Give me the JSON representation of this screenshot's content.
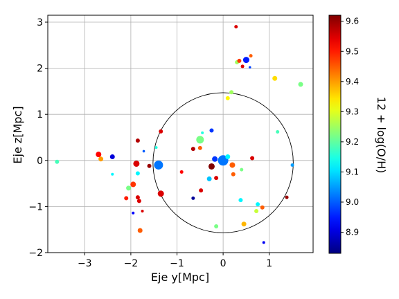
{
  "chart_data": {
    "type": "scatter",
    "xlabel": "Eje y[Mpc]",
    "ylabel": "Eje z[Mpc]",
    "xlim": [
      -3.8,
      1.95
    ],
    "ylim": [
      -2.0,
      3.15
    ],
    "xticks": [
      -3,
      -2,
      -1,
      0,
      1
    ],
    "yticks": [
      -2,
      -1,
      0,
      1,
      2,
      3
    ],
    "grid": true,
    "circle": {
      "center": [
        0.0,
        -0.05
      ],
      "radius": 1.52
    },
    "colorbar": {
      "label": "12 + log(O/H)",
      "range": [
        8.83,
        9.62
      ],
      "ticks": [
        8.9,
        9.0,
        9.1,
        9.2,
        9.3,
        9.4,
        9.5,
        9.6
      ],
      "colormap": "jet"
    },
    "points": [
      {
        "x": -3.6,
        "y": -0.03,
        "c": 9.18,
        "s": 3
      },
      {
        "x": -2.7,
        "y": 0.13,
        "c": 9.52,
        "s": 4
      },
      {
        "x": -2.65,
        "y": 0.03,
        "c": 9.4,
        "s": 3.5
      },
      {
        "x": -2.4,
        "y": 0.08,
        "c": 8.9,
        "s": 3.5
      },
      {
        "x": -2.4,
        "y": -0.3,
        "c": 9.12,
        "s": 2
      },
      {
        "x": -2.1,
        "y": -0.82,
        "c": 9.5,
        "s": 3
      },
      {
        "x": -2.05,
        "y": -0.6,
        "c": 9.22,
        "s": 3.5
      },
      {
        "x": -1.95,
        "y": -0.52,
        "c": 9.48,
        "s": 4
      },
      {
        "x": -1.95,
        "y": -1.14,
        "c": 8.93,
        "s": 2
      },
      {
        "x": -1.88,
        "y": -0.07,
        "c": 9.55,
        "s": 4.5
      },
      {
        "x": -1.85,
        "y": -0.28,
        "c": 9.12,
        "s": 3
      },
      {
        "x": -1.85,
        "y": 0.43,
        "c": 9.58,
        "s": 3
      },
      {
        "x": -1.85,
        "y": -0.8,
        "c": 9.55,
        "s": 3
      },
      {
        "x": -1.82,
        "y": -0.88,
        "c": 9.55,
        "s": 3
      },
      {
        "x": -1.8,
        "y": -1.52,
        "c": 9.45,
        "s": 3.5
      },
      {
        "x": -1.75,
        "y": -1.1,
        "c": 9.55,
        "s": 2
      },
      {
        "x": -1.72,
        "y": 0.2,
        "c": 9.0,
        "s": 1.8
      },
      {
        "x": -1.6,
        "y": -0.12,
        "c": 9.6,
        "s": 3
      },
      {
        "x": -1.45,
        "y": 0.28,
        "c": 9.15,
        "s": 2
      },
      {
        "x": -1.4,
        "y": -0.1,
        "c": 9.02,
        "s": 6.5
      },
      {
        "x": -1.35,
        "y": 0.63,
        "c": 9.55,
        "s": 3
      },
      {
        "x": -1.35,
        "y": -0.72,
        "c": 9.55,
        "s": 4.5
      },
      {
        "x": -0.9,
        "y": -0.25,
        "c": 9.52,
        "s": 2.5
      },
      {
        "x": -0.65,
        "y": -0.82,
        "c": 8.85,
        "s": 2.5
      },
      {
        "x": -0.65,
        "y": 0.25,
        "c": 9.58,
        "s": 3
      },
      {
        "x": -0.5,
        "y": 0.45,
        "c": 9.22,
        "s": 5.5
      },
      {
        "x": -0.5,
        "y": 0.27,
        "c": 9.45,
        "s": 3
      },
      {
        "x": -0.48,
        "y": -0.65,
        "c": 9.55,
        "s": 3
      },
      {
        "x": -0.45,
        "y": 0.6,
        "c": 9.15,
        "s": 2
      },
      {
        "x": -0.3,
        "y": -0.4,
        "c": 9.08,
        "s": 3.5
      },
      {
        "x": -0.25,
        "y": 0.65,
        "c": 8.97,
        "s": 3
      },
      {
        "x": -0.25,
        "y": -0.13,
        "c": 9.62,
        "s": 4.5
      },
      {
        "x": -0.18,
        "y": 0.03,
        "c": 8.97,
        "s": 4
      },
      {
        "x": -0.15,
        "y": -0.38,
        "c": 9.55,
        "s": 3
      },
      {
        "x": -0.15,
        "y": -1.43,
        "c": 9.22,
        "s": 3
      },
      {
        "x": 0.0,
        "y": 0.0,
        "c": 9.02,
        "s": 7.5
      },
      {
        "x": 0.1,
        "y": 0.08,
        "c": 9.12,
        "s": 3.5
      },
      {
        "x": 0.1,
        "y": 1.35,
        "c": 9.33,
        "s": 3
      },
      {
        "x": 0.18,
        "y": 1.48,
        "c": 9.25,
        "s": 3
      },
      {
        "x": 0.2,
        "y": -0.1,
        "c": 9.45,
        "s": 4
      },
      {
        "x": 0.22,
        "y": -0.3,
        "c": 9.45,
        "s": 3
      },
      {
        "x": 0.28,
        "y": 2.9,
        "c": 9.55,
        "s": 2.5
      },
      {
        "x": 0.3,
        "y": 2.13,
        "c": 9.25,
        "s": 3
      },
      {
        "x": 0.35,
        "y": 2.16,
        "c": 9.48,
        "s": 3
      },
      {
        "x": 0.38,
        "y": -0.86,
        "c": 9.12,
        "s": 3
      },
      {
        "x": 0.4,
        "y": -0.2,
        "c": 9.22,
        "s": 2.5
      },
      {
        "x": 0.42,
        "y": 2.04,
        "c": 9.55,
        "s": 2.5
      },
      {
        "x": 0.45,
        "y": -1.38,
        "c": 9.38,
        "s": 3.5
      },
      {
        "x": 0.5,
        "y": 2.18,
        "c": 8.95,
        "s": 4.5
      },
      {
        "x": 0.58,
        "y": 2.02,
        "c": 8.98,
        "s": 1.8
      },
      {
        "x": 0.6,
        "y": 2.27,
        "c": 9.45,
        "s": 2.5
      },
      {
        "x": 0.63,
        "y": 0.05,
        "c": 9.55,
        "s": 3
      },
      {
        "x": 0.72,
        "y": -1.1,
        "c": 9.28,
        "s": 3
      },
      {
        "x": 0.75,
        "y": -0.95,
        "c": 9.12,
        "s": 3
      },
      {
        "x": 0.85,
        "y": -1.02,
        "c": 9.45,
        "s": 3
      },
      {
        "x": 0.88,
        "y": -1.78,
        "c": 8.92,
        "s": 2
      },
      {
        "x": 1.12,
        "y": 1.78,
        "c": 9.35,
        "s": 3.5
      },
      {
        "x": 1.18,
        "y": 0.62,
        "c": 9.18,
        "s": 2.5
      },
      {
        "x": 1.38,
        "y": -0.8,
        "c": 9.6,
        "s": 2.5
      },
      {
        "x": 1.5,
        "y": -0.1,
        "c": 9.05,
        "s": 2.5
      },
      {
        "x": 1.68,
        "y": 1.65,
        "c": 9.22,
        "s": 3.5
      }
    ]
  }
}
